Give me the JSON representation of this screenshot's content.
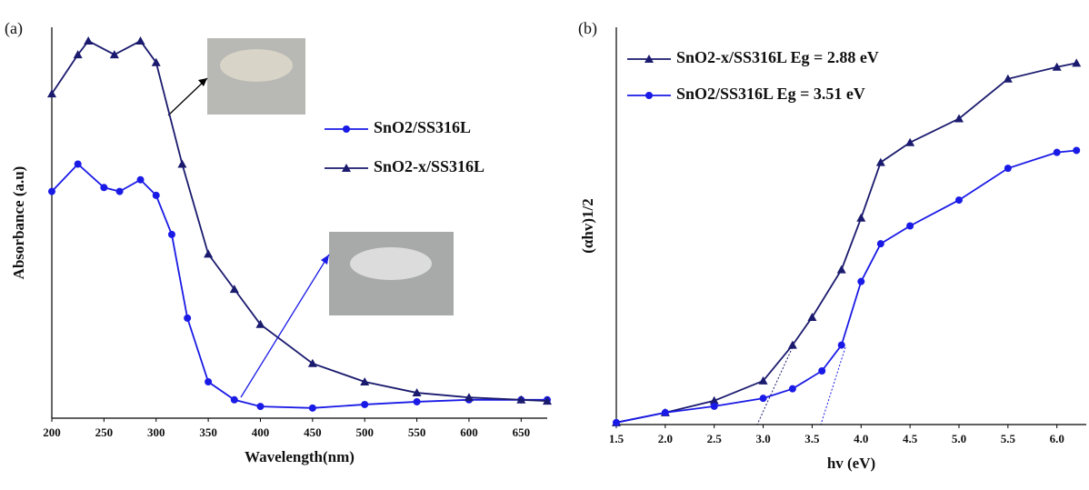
{
  "chart_data": [
    {
      "type": "line",
      "panel_label": "(a)",
      "x_label": "Wavelength(nm)",
      "y_label": "Absorbance (a.u)",
      "xlim": [
        200,
        675
      ],
      "ylim": [
        0,
        1
      ],
      "xticks": [
        200,
        250,
        300,
        350,
        400,
        450,
        500,
        550,
        600,
        650
      ],
      "series": [
        {
          "name": "SnO2/SS316L",
          "color": "#1a1ae6",
          "marker": "circle",
          "x": [
            200,
            225,
            250,
            265,
            285,
            300,
            315,
            330,
            350,
            375,
            400,
            450,
            500,
            550,
            600,
            650,
            675
          ],
          "values": [
            0.58,
            0.65,
            0.59,
            0.58,
            0.61,
            0.57,
            0.47,
            0.256,
            0.093,
            0.047,
            0.03,
            0.026,
            0.035,
            0.042,
            0.047,
            0.047,
            0.047
          ]
        },
        {
          "name": "SnO2-x/SS316L",
          "color": "#1a1a6e",
          "marker": "triangle",
          "x": [
            200,
            225,
            235,
            260,
            285,
            300,
            325,
            350,
            375,
            400,
            450,
            500,
            550,
            600,
            650,
            675
          ],
          "values": [
            0.83,
            0.93,
            0.965,
            0.93,
            0.965,
            0.91,
            0.65,
            0.42,
            0.33,
            0.24,
            0.14,
            0.093,
            0.065,
            0.053,
            0.047,
            0.044
          ]
        }
      ]
    },
    {
      "type": "line",
      "panel_label": "(b)",
      "x_label": "hv (eV)",
      "y_label": "(αhv)1/2",
      "xlim": [
        1.5,
        6.3
      ],
      "ylim": [
        0,
        1
      ],
      "xticks": [
        1.5,
        {
          "value": 2,
          "label": "2.0"
        },
        2.5,
        {
          "value": 3,
          "label": "3.0"
        },
        3.5,
        {
          "value": 4,
          "label": "4.0"
        },
        4.5,
        {
          "value": 5,
          "label": "5.0"
        },
        5.5,
        {
          "value": 6,
          "label": "6.0"
        }
      ],
      "series": [
        {
          "name": "SnO2-x/SS316L Eg = 2.88 eV",
          "color": "#1a1a6e",
          "marker": "triangle",
          "x": [
            1.5,
            2.0,
            2.5,
            3.0,
            3.3,
            3.5,
            3.8,
            4.0,
            4.2,
            4.5,
            5.0,
            5.5,
            6.0,
            6.2
          ],
          "values": [
            0.005,
            0.03,
            0.06,
            0.11,
            0.2,
            0.27,
            0.39,
            0.52,
            0.66,
            0.71,
            0.77,
            0.87,
            0.9,
            0.91
          ]
        },
        {
          "name": "SnO2/SS316L Eg = 3.51 eV",
          "color": "#1a1ae6",
          "marker": "circle",
          "x": [
            1.5,
            2.0,
            2.5,
            3.0,
            3.3,
            3.6,
            3.8,
            4.0,
            4.2,
            4.5,
            5.0,
            5.5,
            6.0,
            6.2
          ],
          "values": [
            0.005,
            0.03,
            0.046,
            0.066,
            0.09,
            0.135,
            0.2,
            0.36,
            0.455,
            0.5,
            0.565,
            0.645,
            0.685,
            0.69
          ]
        }
      ]
    }
  ]
}
